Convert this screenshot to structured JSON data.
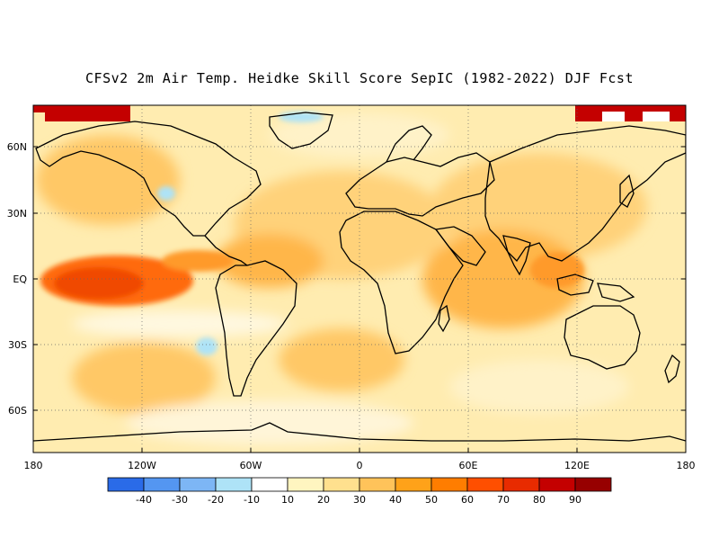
{
  "title": "CFSv2 2m Air Temp. Heidke Skill Score SepIC (1982-2022) DJF Fcst",
  "lat_labels": [
    "60N",
    "30N",
    "EQ",
    "30S",
    "60S"
  ],
  "lon_labels": [
    "180",
    "120W",
    "60W",
    "0",
    "60E",
    "120E",
    "180"
  ],
  "colorbar": {
    "colors": [
      "#2a6be8",
      "#5496f1",
      "#7db6f5",
      "#aee3f7",
      "#ffffff",
      "#fff5c0",
      "#ffe08e",
      "#ffc35a",
      "#ffa219",
      "#ff7d00",
      "#ff4f00",
      "#e82b00",
      "#c40000",
      "#970000"
    ],
    "tick_labels": [
      "-40",
      "-30",
      "-20",
      "-10",
      "10",
      "20",
      "30",
      "40",
      "50",
      "60",
      "70",
      "80",
      "90"
    ]
  },
  "map": {
    "lon_range": [
      -180,
      180
    ],
    "lat_range": [
      -80,
      80
    ],
    "grid": "dotted",
    "features": [
      "coastlines",
      "skill-score shading"
    ]
  }
}
